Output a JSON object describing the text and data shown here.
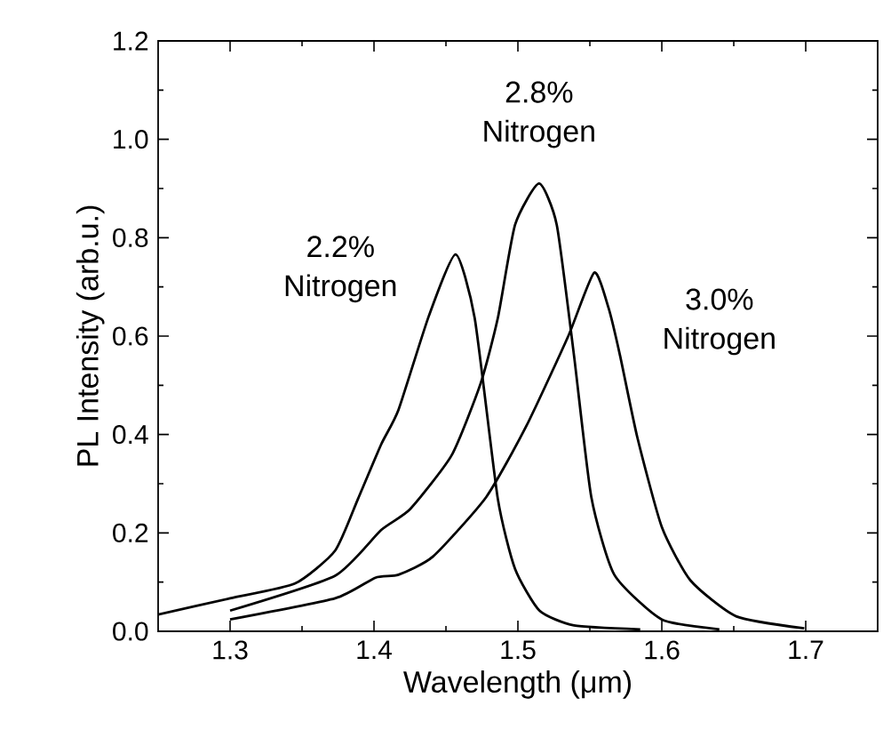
{
  "chart_data": {
    "type": "line",
    "xlabel": "Wavelength (μm)",
    "ylabel": "PL Intensity (arb.u.)",
    "xlim": [
      1.25,
      1.75
    ],
    "ylim": [
      0,
      1.2
    ],
    "xticks": [
      1.3,
      1.4,
      1.5,
      1.6,
      1.7
    ],
    "yticks": [
      {
        "value": 0,
        "label": "0.0"
      },
      {
        "value": 0.2,
        "label": "0.2"
      },
      {
        "value": 0.4,
        "label": "0.4"
      },
      {
        "value": 0.6,
        "label": "0.6"
      },
      {
        "value": 0.8,
        "label": "0.8"
      },
      {
        "value": 1.0,
        "label": "1.0"
      },
      {
        "value": 1.2,
        "label": "1.2"
      }
    ],
    "grid": false,
    "marker": "none",
    "line_style": "solid",
    "series": [
      {
        "color": "#000000",
        "x": [
          1.25,
          1.3,
          1.345,
          1.373,
          1.389,
          1.405,
          1.417,
          1.438,
          1.4567,
          1.47,
          1.486,
          1.498,
          1.515,
          1.539,
          1.585
        ],
        "values": [
          0.034,
          0.067,
          0.097,
          0.164,
          0.27,
          0.38,
          0.45,
          0.64,
          0.766,
          0.636,
          0.27,
          0.127,
          0.042,
          0.012,
          0.004
        ]
      },
      {
        "color": "#000000",
        "x": [
          1.3,
          1.373,
          1.405,
          1.425,
          1.454,
          1.474,
          1.486,
          1.498,
          1.5147,
          1.527,
          1.539,
          1.551,
          1.567,
          1.6,
          1.64
        ],
        "values": [
          0.042,
          0.113,
          0.206,
          0.248,
          0.358,
          0.503,
          0.636,
          0.826,
          0.91,
          0.826,
          0.56,
          0.273,
          0.115,
          0.024,
          0.004
        ]
      },
      {
        "color": "#000000",
        "x": [
          1.3,
          1.373,
          1.401,
          1.417,
          1.441,
          1.478,
          1.506,
          1.535,
          1.553,
          1.563,
          1.571,
          1.583,
          1.6,
          1.62,
          1.652,
          1.699
        ],
        "values": [
          0.024,
          0.067,
          0.109,
          0.115,
          0.152,
          0.273,
          0.418,
          0.6,
          0.729,
          0.657,
          0.56,
          0.394,
          0.212,
          0.103,
          0.03,
          0.006
        ]
      }
    ],
    "annotations": [
      "2.2% Nitrogen",
      "2.8% Nitrogen",
      "3.0% Nitrogen"
    ]
  }
}
